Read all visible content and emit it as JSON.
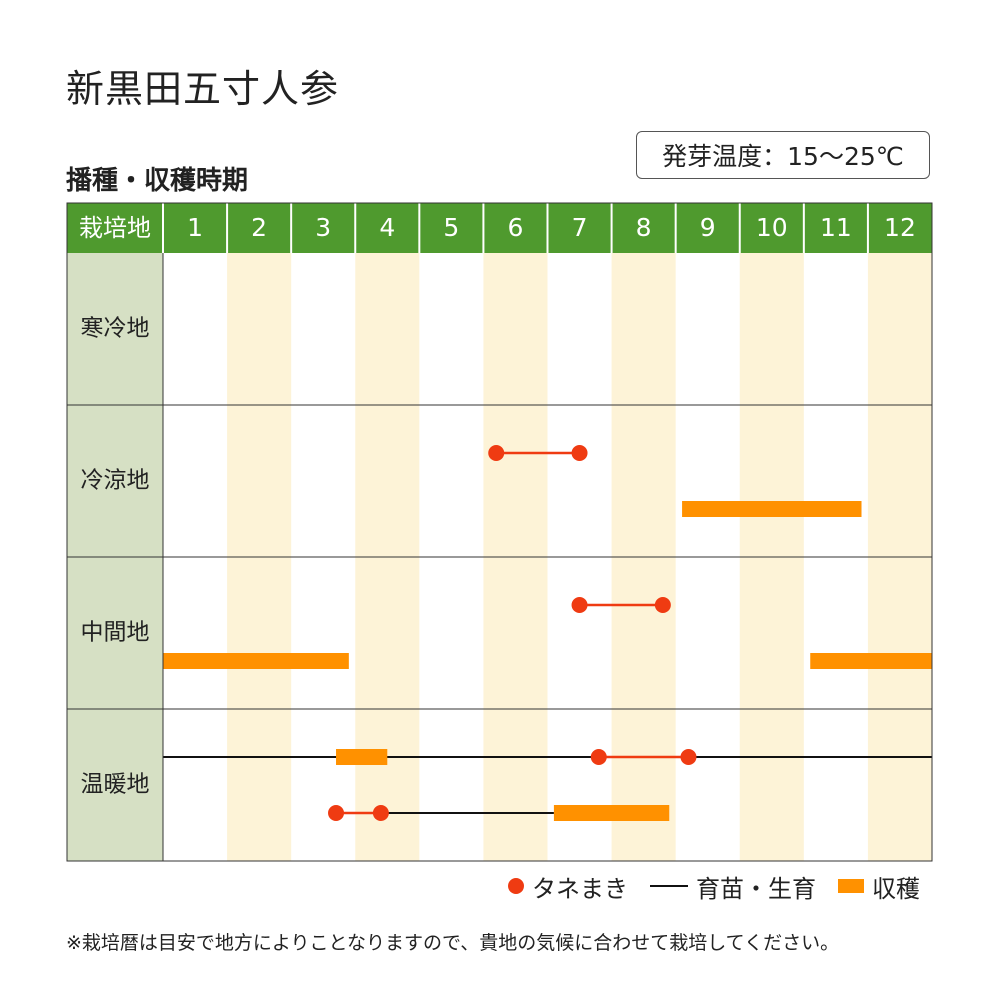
{
  "title": "新黒田五寸人参",
  "subtitle": "播種・収穫時期",
  "temp_label": "発芽温度：15〜25℃",
  "header_label": "栽培地",
  "colors": {
    "header_green": "#4f9a2e",
    "region_cell": "#d6e0c4",
    "stripe": "#fdf3d7",
    "sowing": "#ef3b12",
    "harvest": "#ff9100",
    "growing": "#111111"
  },
  "chart_data": {
    "type": "table",
    "months": [
      "1",
      "2",
      "3",
      "4",
      "5",
      "6",
      "7",
      "8",
      "9",
      "10",
      "11",
      "12"
    ],
    "regions": [
      {
        "name": "寒冷地",
        "rows": []
      },
      {
        "name": "冷涼地",
        "rows": [
          {
            "sowing": [
              6.2,
              7.5
            ]
          },
          {
            "harvest": [
              9.1,
              11.9
            ]
          }
        ]
      },
      {
        "name": "中間地",
        "rows": [
          {
            "sowing": [
              7.5,
              8.8
            ]
          },
          {
            "harvest": [
              1.0,
              3.9
            ],
            "harvest2": [
              11.1,
              13.0
            ]
          }
        ]
      },
      {
        "name": "温暖地",
        "rows": [
          {
            "growing": [
              1.0,
              13.0
            ],
            "harvest": [
              3.7,
              4.5
            ],
            "sowing": [
              7.8,
              9.2
            ]
          },
          {
            "sowing": [
              3.7,
              4.4
            ],
            "growing": [
              4.4,
              7.1
            ],
            "harvest": [
              7.1,
              8.9
            ]
          }
        ]
      }
    ]
  },
  "legend": {
    "sowing": "タネまき",
    "growing": "育苗・生育",
    "harvest": "収穫"
  },
  "note": "※栽培暦は目安で地方によりことなりますので、貴地の気候に合わせて栽培してください。"
}
